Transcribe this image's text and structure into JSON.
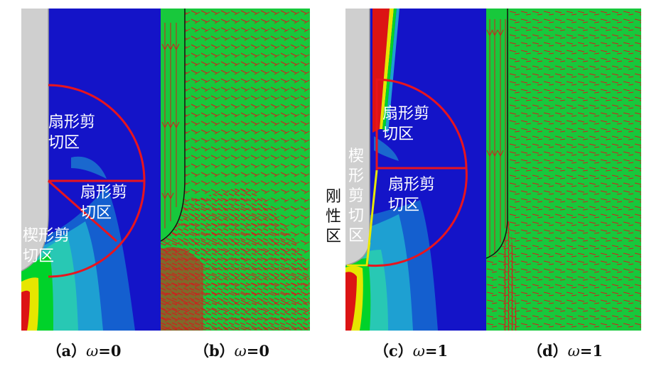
{
  "panels": [
    {
      "id": "a",
      "caption_prefix": "（a）",
      "omega": "ω",
      "caption_suffix": "=0"
    },
    {
      "id": "b",
      "caption_prefix": "（b）",
      "omega": "ω",
      "caption_suffix": "=0"
    },
    {
      "id": "c",
      "caption_prefix": "（c）",
      "omega": "ω",
      "caption_suffix": "=1"
    },
    {
      "id": "d",
      "caption_prefix": "（d）",
      "omega": "ω",
      "caption_suffix": "=1"
    }
  ],
  "labels": {
    "a_fan_top": "扇形剪切区",
    "a_fan_mid": "扇形剪切区",
    "a_wedge": "楔形剪切区",
    "c_fan_top": "扇形剪切区",
    "c_fan_mid": "扇形剪切区",
    "c_wedge": "楔形剪切区",
    "c_rigid": "刚性区"
  },
  "colors": {
    "contour_blue": "#1414c8",
    "contour_cyan": "#1ea0d2",
    "contour_green": "#00d22a",
    "contour_yellow": "#e6e600",
    "contour_red": "#dc1414",
    "boundary_red": "#e8141e",
    "pile_gray": "#cfcfcf",
    "vector_green": "#18c83c",
    "vector_red": "#d21e1e"
  }
}
